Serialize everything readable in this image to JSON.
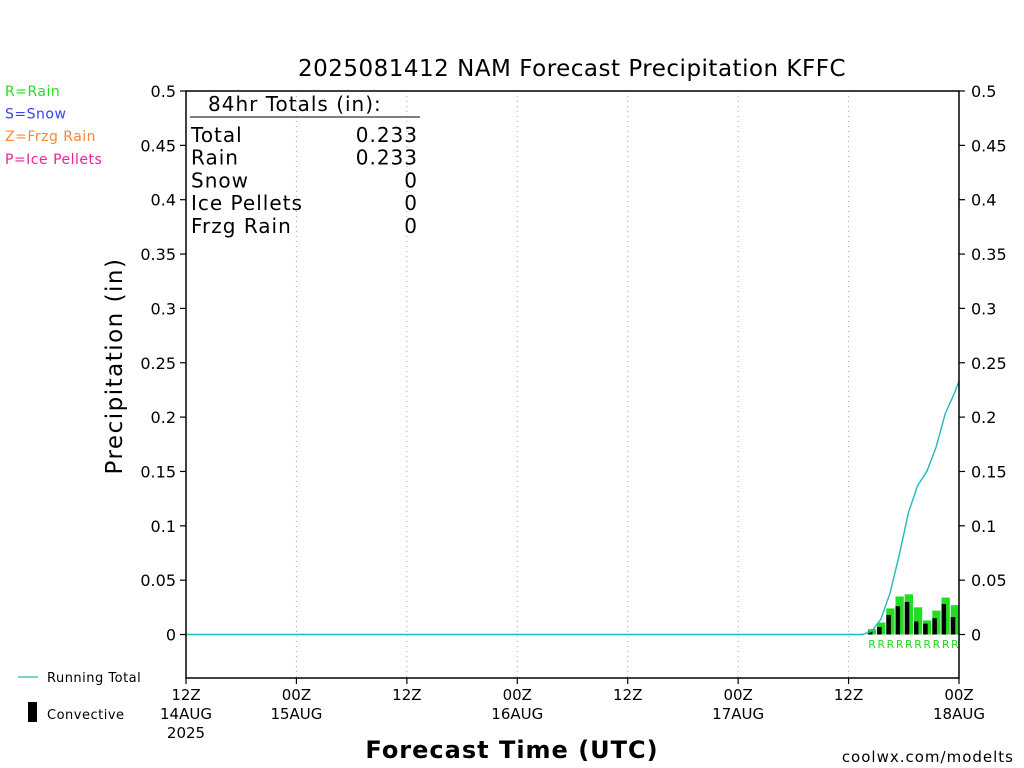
{
  "chart_data": {
    "type": "bar",
    "title": "2025081412 NAM Forecast Precipitation KFFC",
    "xlabel": "Forecast Time (UTC)",
    "ylabel": "Precipitation (in)",
    "ylim": [
      -0.04,
      0.5
    ],
    "xlim_hours": [
      0,
      84
    ],
    "grid": "vertical dotted",
    "y_ticks": [
      "0",
      "0.05",
      "0.1",
      "0.15",
      "0.2",
      "0.25",
      "0.3",
      "0.35",
      "0.4",
      "0.45",
      "0.5"
    ],
    "y_tick_values": [
      0,
      0.05,
      0.1,
      0.15,
      0.2,
      0.25,
      0.3,
      0.35,
      0.4,
      0.45,
      0.5
    ],
    "x_ticks": [
      {
        "hour": 0,
        "l1": "12Z",
        "l2": "14AUG",
        "l3": "2025"
      },
      {
        "hour": 12,
        "l1": "00Z",
        "l2": "15AUG",
        "l3": ""
      },
      {
        "hour": 24,
        "l1": "12Z",
        "l2": "",
        "l3": ""
      },
      {
        "hour": 36,
        "l1": "00Z",
        "l2": "16AUG",
        "l3": ""
      },
      {
        "hour": 48,
        "l1": "12Z",
        "l2": "",
        "l3": ""
      },
      {
        "hour": 60,
        "l1": "00Z",
        "l2": "17AUG",
        "l3": ""
      },
      {
        "hour": 72,
        "l1": "12Z",
        "l2": "",
        "l3": ""
      },
      {
        "hour": 84,
        "l1": "00Z",
        "l2": "18AUG",
        "l3": ""
      }
    ],
    "totals": {
      "heading": "84hr Totals (in):",
      "rows": [
        {
          "label": "Total",
          "value": "0.233"
        },
        {
          "label": "Rain",
          "value": "0.233"
        },
        {
          "label": "Snow",
          "value": "0"
        },
        {
          "label": "Ice Pellets",
          "value": "0"
        },
        {
          "label": "Frzg Rain",
          "value": "0"
        }
      ]
    },
    "ptype_legend": [
      {
        "text": "R=Rain",
        "color": "#22dd22"
      },
      {
        "text": "S=Snow",
        "color": "#3344ee"
      },
      {
        "text": "Z=Frzg Rain",
        "color": "#ff8833"
      },
      {
        "text": "P=Ice Pellets",
        "color": "#ee2299"
      }
    ],
    "series_legend": {
      "running_total": "Running Total",
      "convective": "Convective"
    },
    "bars": {
      "hours": [
        75,
        76,
        77,
        78,
        79,
        80,
        81,
        82,
        83,
        84
      ],
      "total": [
        0.005,
        0.011,
        0.024,
        0.035,
        0.037,
        0.025,
        0.013,
        0.022,
        0.034,
        0.027
      ],
      "convective": [
        0.003,
        0.007,
        0.018,
        0.026,
        0.03,
        0.012,
        0.01,
        0.015,
        0.028,
        0.016
      ],
      "ptype_markers": [
        "R",
        "R",
        "R",
        "R",
        "R",
        "R",
        "R",
        "R",
        "R",
        "R"
      ]
    },
    "running_total": {
      "hours": [
        0,
        73.5,
        74.5,
        75.5,
        76.5,
        77.5,
        78.5,
        79.5,
        80.5,
        81.5,
        82.5,
        83.5,
        84
      ],
      "values": [
        0,
        0,
        0.003,
        0.014,
        0.038,
        0.073,
        0.112,
        0.137,
        0.15,
        0.172,
        0.203,
        0.222,
        0.233
      ]
    },
    "colors": {
      "rain": "#22dd22",
      "convective": "#000000",
      "running_total": "#22bbbb",
      "grid": "#aaaaaa"
    }
  },
  "credit": "coolwx.com/modelts",
  "credit_color": "#cc1133"
}
